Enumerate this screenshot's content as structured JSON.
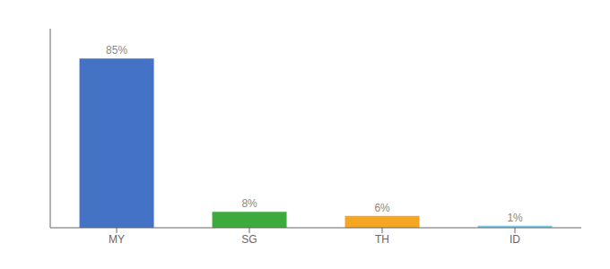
{
  "chart_data": {
    "type": "bar",
    "categories": [
      "MY",
      "SG",
      "TH",
      "ID"
    ],
    "values": [
      85,
      8,
      6,
      1
    ],
    "value_labels": [
      "85%",
      "8%",
      "6%",
      "1%"
    ],
    "colors": [
      "#4472C4",
      "#3DAA3D",
      "#F5A623",
      "#7EC8E3"
    ],
    "ylim": [
      0,
      100
    ],
    "tick_labels": "x"
  }
}
